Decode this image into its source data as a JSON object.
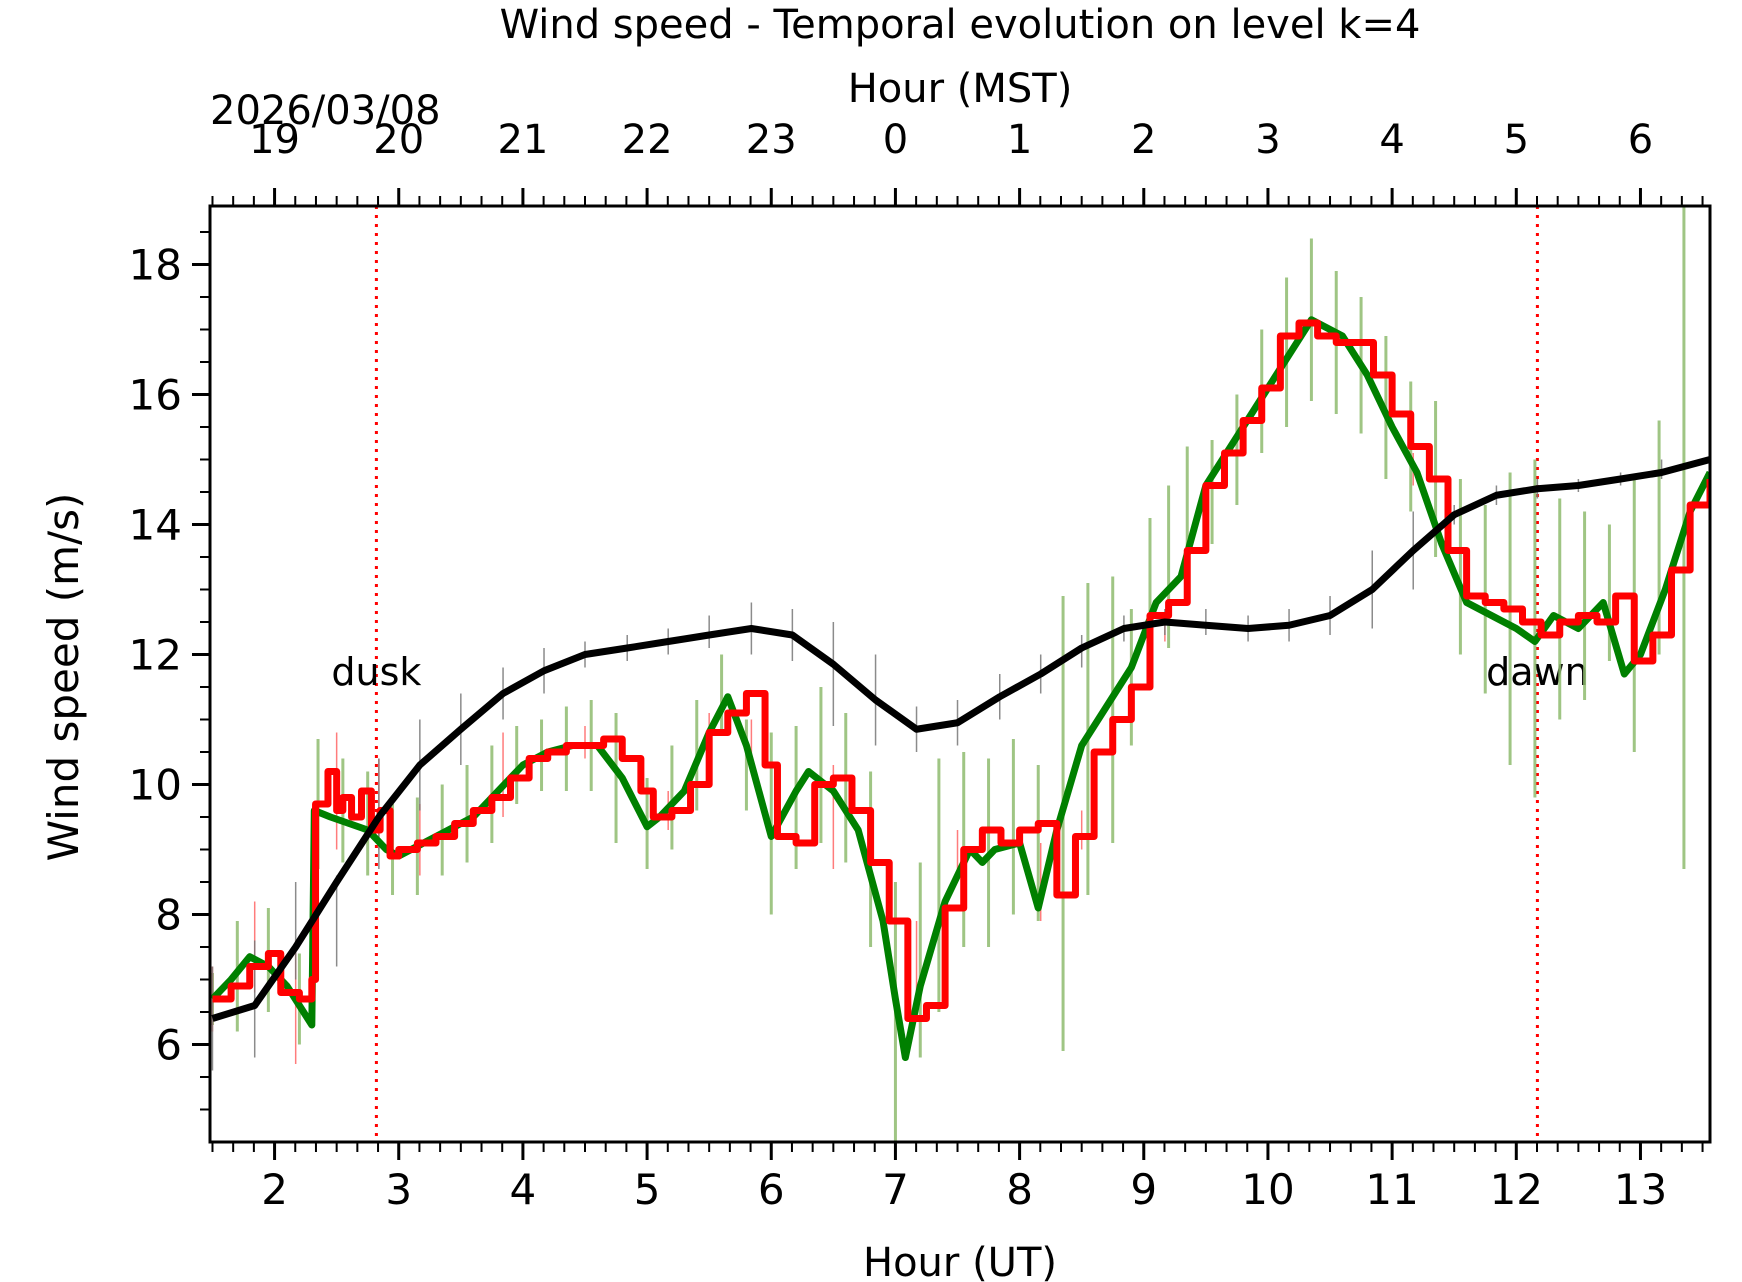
{
  "chart_data": {
    "type": "line",
    "title": "Wind speed - Temporal evolution on level k=4",
    "xlabel": "Hour (UT)",
    "ylabel": "Wind speed (m/s)",
    "top_axis_label": "Hour (MST)",
    "date_label": "2026/03/08",
    "xlim": [
      1.48,
      13.56
    ],
    "ylim": [
      4.5,
      18.9
    ],
    "x_ticks": [
      2,
      3,
      4,
      5,
      6,
      7,
      8,
      9,
      10,
      11,
      12,
      13
    ],
    "x_tick_labels": [
      "2",
      "3",
      "4",
      "5",
      "6",
      "7",
      "8",
      "9",
      "10",
      "11",
      "12",
      "13"
    ],
    "y_ticks": [
      6,
      8,
      10,
      12,
      14,
      16,
      18
    ],
    "y_tick_labels": [
      "6",
      "8",
      "10",
      "12",
      "14",
      "16",
      "18"
    ],
    "top_ticks_ut": [
      2,
      3,
      4,
      5,
      6,
      7,
      8,
      9,
      10,
      11,
      12,
      13
    ],
    "top_tick_labels": [
      "19",
      "20",
      "21",
      "22",
      "23",
      "0",
      "1",
      "2",
      "3",
      "4",
      "5",
      "6"
    ],
    "grid": false,
    "vertical_markers": [
      {
        "x": 2.82,
        "label": "dusk",
        "color": "#ff0000"
      },
      {
        "x": 12.17,
        "label": "dawn",
        "color": "#ff0000"
      }
    ],
    "series": [
      {
        "color": "#008000",
        "style": "smooth",
        "x": [
          1.5,
          1.65,
          1.8,
          1.95,
          2.1,
          2.2,
          2.3,
          2.32,
          2.45,
          2.6,
          2.75,
          2.9,
          3.0,
          3.2,
          3.4,
          3.6,
          3.8,
          4.0,
          4.2,
          4.4,
          4.6,
          4.8,
          5.0,
          5.1,
          5.3,
          5.5,
          5.65,
          5.8,
          6.0,
          6.2,
          6.3,
          6.5,
          6.7,
          6.9,
          7.0,
          7.08,
          7.2,
          7.4,
          7.6,
          7.7,
          7.8,
          8.0,
          8.15,
          8.3,
          8.5,
          8.7,
          8.9,
          9.1,
          9.3,
          9.5,
          9.7,
          9.9,
          10.1,
          10.35,
          10.6,
          10.8,
          11.0,
          11.2,
          11.4,
          11.6,
          11.8,
          12.0,
          12.15,
          12.3,
          12.5,
          12.7,
          12.87,
          13.0,
          13.2,
          13.4,
          13.56
        ],
        "values": [
          6.7,
          7.0,
          7.35,
          7.2,
          6.9,
          6.6,
          6.3,
          9.6,
          9.5,
          9.4,
          9.3,
          9.0,
          8.9,
          9.1,
          9.3,
          9.5,
          9.9,
          10.3,
          10.5,
          10.6,
          10.6,
          10.1,
          9.35,
          9.5,
          9.9,
          10.8,
          11.35,
          10.6,
          9.2,
          9.9,
          10.2,
          9.9,
          9.3,
          7.9,
          6.7,
          5.8,
          6.9,
          8.2,
          9.0,
          8.8,
          9.0,
          9.1,
          8.1,
          9.3,
          10.6,
          11.2,
          11.8,
          12.8,
          13.2,
          14.6,
          15.2,
          15.8,
          16.4,
          17.15,
          16.9,
          16.3,
          15.5,
          14.8,
          13.7,
          12.8,
          12.6,
          12.4,
          12.2,
          12.6,
          12.4,
          12.8,
          11.7,
          12.0,
          13.0,
          14.2,
          14.8
        ]
      },
      {
        "color": "#ff0000",
        "style": "steps",
        "x": [
          1.5,
          1.65,
          1.8,
          1.95,
          2.05,
          2.2,
          2.3,
          2.33,
          2.43,
          2.5,
          2.55,
          2.62,
          2.7,
          2.78,
          2.85,
          2.93,
          3.0,
          3.15,
          3.3,
          3.45,
          3.6,
          3.75,
          3.9,
          4.05,
          4.2,
          4.35,
          4.5,
          4.65,
          4.8,
          4.95,
          5.05,
          5.2,
          5.35,
          5.5,
          5.65,
          5.8,
          5.95,
          6.05,
          6.2,
          6.35,
          6.5,
          6.65,
          6.8,
          6.95,
          7.1,
          7.25,
          7.4,
          7.55,
          7.7,
          7.85,
          8.0,
          8.15,
          8.3,
          8.45,
          8.6,
          8.75,
          8.9,
          9.05,
          9.2,
          9.35,
          9.5,
          9.65,
          9.8,
          9.95,
          10.1,
          10.25,
          10.4,
          10.55,
          10.7,
          10.85,
          11.0,
          11.15,
          11.3,
          11.45,
          11.6,
          11.75,
          11.9,
          12.05,
          12.2,
          12.35,
          12.5,
          12.65,
          12.8,
          12.95,
          13.1,
          13.25,
          13.4,
          13.56
        ],
        "values": [
          6.7,
          6.9,
          7.2,
          7.4,
          6.8,
          6.7,
          7.0,
          9.7,
          10.2,
          9.6,
          9.8,
          9.5,
          9.9,
          9.3,
          9.6,
          8.9,
          9.0,
          9.1,
          9.2,
          9.4,
          9.6,
          9.8,
          10.1,
          10.4,
          10.5,
          10.6,
          10.6,
          10.7,
          10.4,
          9.9,
          9.5,
          9.6,
          10.0,
          10.8,
          11.1,
          11.4,
          10.3,
          9.2,
          9.1,
          10.0,
          10.1,
          9.6,
          8.8,
          7.9,
          6.4,
          6.6,
          8.1,
          9.0,
          9.3,
          9.1,
          9.3,
          9.4,
          8.3,
          9.2,
          10.5,
          11.0,
          11.5,
          12.6,
          12.8,
          13.6,
          14.6,
          15.1,
          15.6,
          16.1,
          16.9,
          17.1,
          16.9,
          16.8,
          16.8,
          16.3,
          15.7,
          15.2,
          14.7,
          13.6,
          12.9,
          12.8,
          12.7,
          12.5,
          12.3,
          12.5,
          12.6,
          12.5,
          12.9,
          11.9,
          12.3,
          13.3,
          14.3,
          14.7
        ]
      },
      {
        "color": "#000000",
        "style": "line",
        "x": [
          1.5,
          1.84,
          2.17,
          2.5,
          2.84,
          3.17,
          3.5,
          3.84,
          4.17,
          4.5,
          4.84,
          5.17,
          5.5,
          5.84,
          6.17,
          6.5,
          6.84,
          7.17,
          7.5,
          7.84,
          8.17,
          8.5,
          8.84,
          9.17,
          9.5,
          9.84,
          10.17,
          10.5,
          10.84,
          11.17,
          11.5,
          11.84,
          12.17,
          12.5,
          12.84,
          13.17,
          13.56
        ],
        "values": [
          6.4,
          6.6,
          7.5,
          8.5,
          9.5,
          10.3,
          10.85,
          11.4,
          11.75,
          12.0,
          12.1,
          12.2,
          12.3,
          12.4,
          12.3,
          11.85,
          11.3,
          10.85,
          10.95,
          11.35,
          11.7,
          12.1,
          12.4,
          12.5,
          12.45,
          12.4,
          12.45,
          12.6,
          13.0,
          13.6,
          14.15,
          14.45,
          14.55,
          14.6,
          14.7,
          14.8,
          15.0
        ]
      }
    ],
    "error_bars": [
      {
        "color": "#8fbc6f",
        "x": [
          1.5,
          1.7,
          1.95,
          2.2,
          2.35,
          2.55,
          2.75,
          2.95,
          3.15,
          3.35,
          3.55,
          3.75,
          3.95,
          4.15,
          4.35,
          4.55,
          4.75,
          5.0,
          5.2,
          5.4,
          5.6,
          5.8,
          6.0,
          6.2,
          6.4,
          6.6,
          6.8,
          7.0,
          7.2,
          7.35,
          7.55,
          7.75,
          7.95,
          8.15,
          8.35,
          8.55,
          8.75,
          8.9,
          9.05,
          9.2,
          9.35,
          9.55,
          9.75,
          9.95,
          10.15,
          10.35,
          10.55,
          10.75,
          10.95,
          11.15,
          11.35,
          11.55,
          11.75,
          11.95,
          12.15,
          12.35,
          12.55,
          12.75,
          12.95,
          13.15,
          13.35
        ],
        "low": [
          6.3,
          6.2,
          6.5,
          6.0,
          8.7,
          8.8,
          8.6,
          8.3,
          8.3,
          8.6,
          8.8,
          9.1,
          9.7,
          9.9,
          9.9,
          9.9,
          9.1,
          8.7,
          9.0,
          9.6,
          10.8,
          9.6,
          8.0,
          8.7,
          9.1,
          8.8,
          7.5,
          4.5,
          5.8,
          6.5,
          7.5,
          7.5,
          8.0,
          7.9,
          5.9,
          8.3,
          9.1,
          10.6,
          11.5,
          12.1,
          13.1,
          13.7,
          14.3,
          15.1,
          15.5,
          15.9,
          15.7,
          15.4,
          14.7,
          14.2,
          13.5,
          12.0,
          11.4,
          10.3,
          9.8,
          11.0,
          11.3,
          11.9,
          10.5,
          12.0,
          8.7
        ],
        "high": [
          7.1,
          7.9,
          8.1,
          7.4,
          10.7,
          10.4,
          10.2,
          9.7,
          9.8,
          10.0,
          10.3,
          10.6,
          10.9,
          11.0,
          11.2,
          11.3,
          11.1,
          10.1,
          10.6,
          11.3,
          12.0,
          11.0,
          10.8,
          10.9,
          11.5,
          11.1,
          10.2,
          8.5,
          8.8,
          10.4,
          10.5,
          10.4,
          10.7,
          10.3,
          12.9,
          13.1,
          13.2,
          12.7,
          14.1,
          14.6,
          15.2,
          15.3,
          16.0,
          17.0,
          17.8,
          18.4,
          17.9,
          17.5,
          16.9,
          16.2,
          15.9,
          14.7,
          14.3,
          14.8,
          15.0,
          14.4,
          14.2,
          14.0,
          14.7,
          15.6,
          18.9
        ]
      },
      {
        "color": "#ff6666",
        "x": [
          1.5,
          1.84,
          2.17,
          2.5,
          2.84,
          3.17,
          3.84,
          4.5,
          5.17,
          5.5,
          5.84,
          6.5,
          7.17,
          7.5,
          8.17,
          8.5,
          9.17,
          11.17
        ],
        "low": [
          6.2,
          6.8,
          5.7,
          9.0,
          9.0,
          8.6,
          9.5,
          10.4,
          9.3,
          10.3,
          10.3,
          8.7,
          6.5,
          8.6,
          7.9,
          9.0,
          12.2,
          14.6
        ],
        "high": [
          7.2,
          8.2,
          7.6,
          10.8,
          10.4,
          9.7,
          10.8,
          10.9,
          9.9,
          11.1,
          11.0,
          10.3,
          7.9,
          9.3,
          9.1,
          9.6,
          12.6,
          15.1
        ]
      },
      {
        "color": "#777777",
        "x": [
          1.5,
          1.84,
          2.17,
          2.5,
          2.84,
          3.17,
          3.5,
          3.84,
          4.17,
          4.5,
          4.84,
          5.17,
          5.5,
          5.84,
          6.17,
          6.5,
          6.84,
          7.17,
          7.5,
          7.84,
          8.17,
          8.5,
          8.84,
          9.17,
          9.5,
          9.84,
          10.17,
          10.5,
          10.84,
          11.17,
          11.5,
          11.84,
          12.17,
          12.5,
          12.84,
          13.17
        ],
        "low": [
          5.6,
          5.8,
          7.0,
          7.2,
          8.7,
          9.6,
          10.3,
          11.0,
          11.4,
          11.8,
          11.9,
          12.0,
          12.1,
          12.0,
          11.9,
          10.9,
          10.6,
          10.5,
          10.6,
          11.0,
          11.4,
          11.8,
          12.2,
          12.3,
          12.3,
          12.2,
          12.2,
          12.3,
          12.4,
          13.0,
          14.0,
          14.3,
          14.4,
          14.5,
          14.6,
          14.7
        ],
        "high": [
          7.2,
          7.6,
          8.5,
          8.6,
          10.4,
          11.0,
          11.4,
          11.8,
          12.1,
          12.2,
          12.3,
          12.4,
          12.6,
          12.8,
          12.7,
          12.5,
          12.0,
          11.2,
          11.3,
          11.7,
          12.0,
          12.3,
          12.6,
          12.7,
          12.7,
          12.6,
          12.7,
          12.9,
          13.6,
          14.2,
          14.3,
          14.6,
          14.7,
          14.7,
          14.8,
          15.0
        ]
      }
    ]
  }
}
